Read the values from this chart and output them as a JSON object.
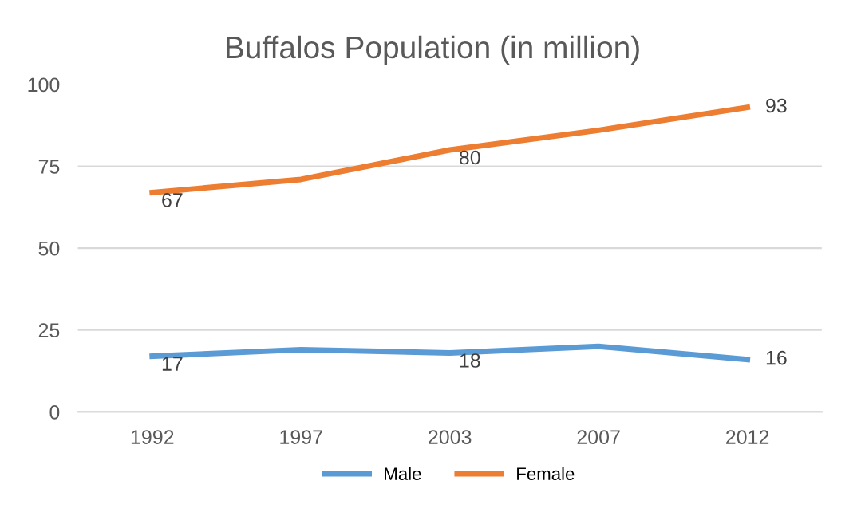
{
  "chart_data": {
    "type": "line",
    "title": "Buffalos Population (in million)",
    "categories": [
      "1992",
      "1997",
      "2003",
      "2007",
      "2012"
    ],
    "series": [
      {
        "name": "Male",
        "color": "#5b9bd5",
        "values": [
          17,
          19,
          18,
          20,
          16
        ],
        "value_labels": [
          "17",
          null,
          "18",
          null,
          "16"
        ]
      },
      {
        "name": "Female",
        "color": "#ed7d31",
        "values": [
          67,
          71,
          80,
          86,
          93
        ],
        "value_labels": [
          "67",
          null,
          "80",
          null,
          "93"
        ]
      }
    ],
    "ylim": [
      0,
      100
    ],
    "yticks": [
      0,
      25,
      50,
      75,
      100
    ],
    "grid": "y",
    "legend": "bottom",
    "marker": "none",
    "line_style": "solid"
  }
}
